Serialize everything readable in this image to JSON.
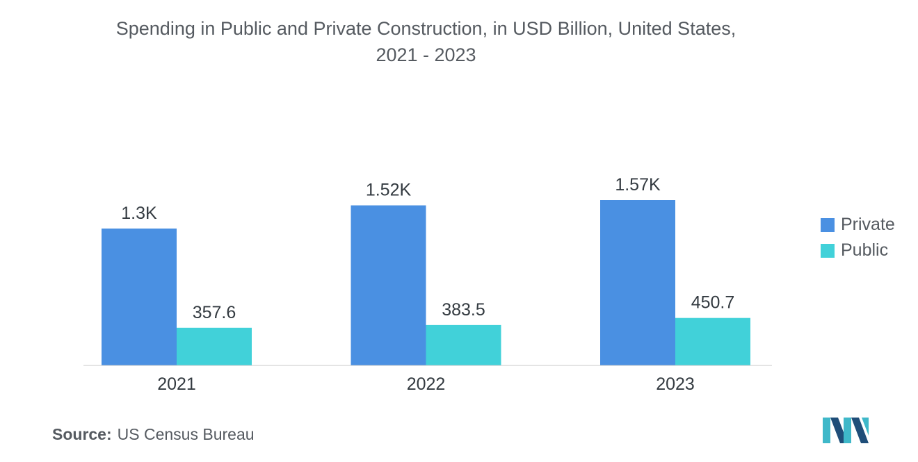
{
  "title": {
    "line1": "Spending in Public and Private Construction, in USD Billion, United States,",
    "line2": "2021 - 2023"
  },
  "chart_data": {
    "type": "bar",
    "categories": [
      "2021",
      "2022",
      "2023"
    ],
    "series": [
      {
        "name": "Private",
        "values": [
          1300,
          1520,
          1570
        ],
        "labels": [
          "1.3K",
          "1.52K",
          "1.57K"
        ],
        "color": "#4a90e2"
      },
      {
        "name": "Public",
        "values": [
          357.6,
          383.5,
          450.7
        ],
        "labels": [
          "357.6",
          "383.5",
          "450.7"
        ],
        "color": "#41d1d9"
      }
    ],
    "ylim": [
      0,
      1570
    ],
    "grid": false,
    "legend_position": "right"
  },
  "source": {
    "label": "Source:",
    "text": "US Census Bureau"
  },
  "colors": {
    "axis": "#c8c8c8",
    "logo_dark": "#1f4e79",
    "logo_light": "#3fb8c9"
  }
}
